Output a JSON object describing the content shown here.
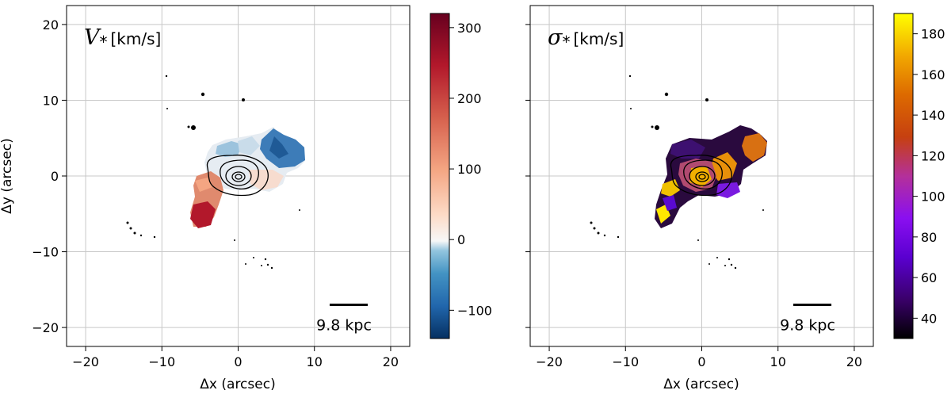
{
  "chart_data": [
    {
      "type": "heatmap",
      "title_symbol": "V",
      "title_sub": "*",
      "title_unit": "[km/s]",
      "xlabel": "Δx (arcsec)",
      "ylabel": "Δy (arcsec)",
      "xlim": [
        -22.5,
        22.5
      ],
      "ylim": [
        -22.5,
        22.5
      ],
      "xticks": [
        -20,
        -10,
        0,
        10,
        20
      ],
      "yticks": [
        -20,
        -10,
        0,
        10,
        20
      ],
      "xtick_labels": [
        "−20",
        "−10",
        "0",
        "10",
        "20"
      ],
      "ytick_labels": [
        "−20",
        "−10",
        "0",
        "10",
        "20"
      ],
      "grid": true,
      "colorbar": {
        "cmap": "RdBu_r",
        "vmin": -140,
        "vmax": 320,
        "ticks": [
          -100,
          0,
          100,
          200,
          300
        ],
        "tick_labels": [
          "−100",
          "0",
          "100",
          "200",
          "300"
        ]
      },
      "scale_bar": {
        "label": "9.8 kpc",
        "x_start": 12,
        "x_end": 17,
        "y": -17
      }
    },
    {
      "type": "heatmap",
      "title_symbol": "σ",
      "title_sub": "*",
      "title_unit": "[km/s]",
      "xlabel": "Δx (arcsec)",
      "ylabel": "",
      "xlim": [
        -22.5,
        22.5
      ],
      "ylim": [
        -22.5,
        22.5
      ],
      "xticks": [
        -20,
        -10,
        0,
        10,
        20
      ],
      "yticks": [
        -20,
        -10,
        0,
        10,
        20
      ],
      "xtick_labels": [
        "−20",
        "−10",
        "0",
        "10",
        "20"
      ],
      "ytick_labels": [],
      "grid": true,
      "colorbar": {
        "cmap": "gnuplot",
        "vmin": 30,
        "vmax": 190,
        "ticks": [
          40,
          60,
          80,
          100,
          120,
          140,
          160,
          180
        ],
        "tick_labels": [
          "40",
          "60",
          "80",
          "100",
          "120",
          "140",
          "160",
          "180"
        ]
      },
      "scale_bar": {
        "label": "9.8 kpc",
        "x_start": 12,
        "x_end": 17,
        "y": -17
      }
    }
  ]
}
